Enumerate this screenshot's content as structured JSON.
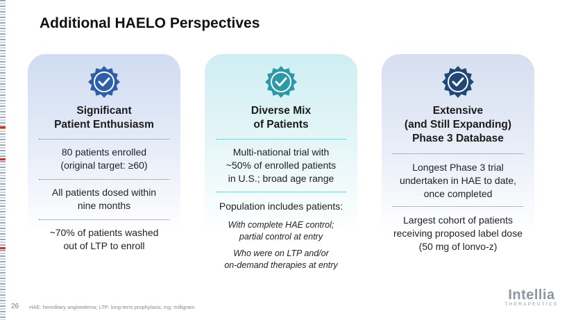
{
  "title": "Additional HAELO Perspectives",
  "cards": [
    {
      "heading": [
        "Significant",
        "Patient Enthusiasm"
      ],
      "items": [
        [
          "80 patients enrolled",
          "(original target: ≥60)"
        ],
        [
          "All patients dosed within",
          "nine months"
        ],
        [
          "~70% of patients washed",
          "out of LTP to enroll"
        ]
      ]
    },
    {
      "heading": [
        "Diverse Mix",
        "of Patients"
      ],
      "items": [
        [
          "Multi-national trial with",
          "~50% of enrolled patients",
          "in U.S.; broad age range"
        ],
        [
          "Population includes patients:"
        ]
      ],
      "sub_items": [
        [
          "With complete HAE control;",
          "partial control at entry"
        ],
        [
          "Who were on LTP and/or",
          "on-demand therapies at entry"
        ]
      ]
    },
    {
      "heading": [
        "Extensive",
        "(and Still Expanding)",
        "Phase 3 Database"
      ],
      "items": [
        [
          "Longest Phase 3 trial",
          "undertaken in HAE to date,",
          "once completed"
        ],
        [
          "Largest cohort of patients",
          "receiving proposed label dose",
          "(50 mg of lonvo-z)"
        ]
      ]
    }
  ],
  "icons": {
    "badge": "verified-badge-check-icon"
  },
  "colors": {
    "badge1": "#2c5fa8",
    "badge2": "#2b9aa8",
    "badge3": "#1f4778"
  },
  "footer": {
    "page_number": "26",
    "footnote": "HAE: hereditary angioedema; LTP: long-term prophylaxis; mg: milligram"
  },
  "logo": {
    "name": "Intellia",
    "sub": "THERAPEUTICS"
  }
}
